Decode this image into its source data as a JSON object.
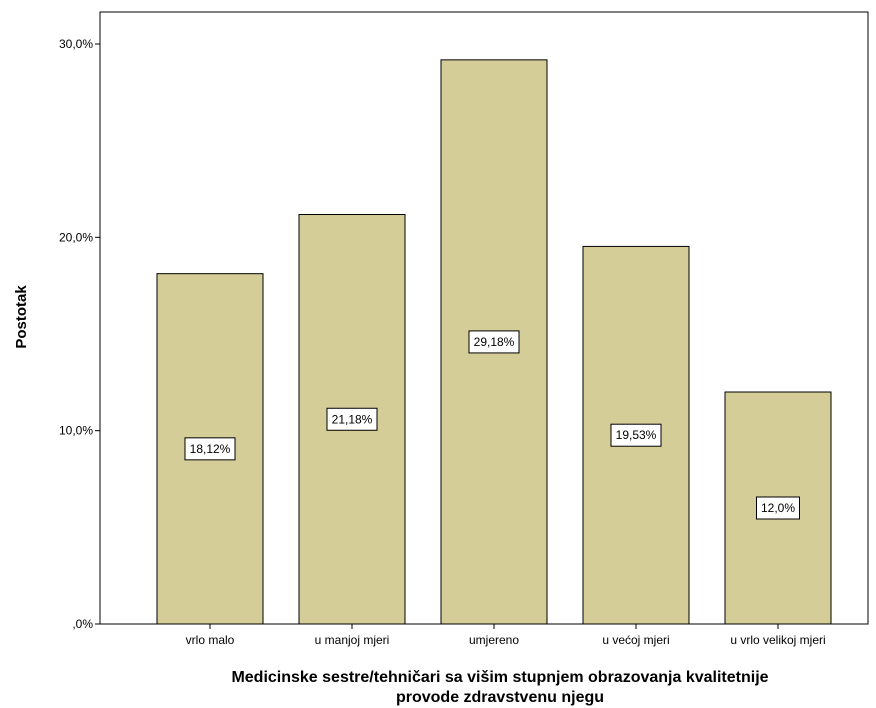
{
  "chart_data": {
    "type": "bar",
    "categories": [
      "vrlo malo",
      "u manjoj mjeri",
      "umjereno",
      "u većoj mjeri",
      "u vrlo velikoj mjeri"
    ],
    "values": [
      18.12,
      21.18,
      29.18,
      19.53,
      12.0
    ],
    "data_labels": [
      "18,12%",
      "21,18%",
      "29,18%",
      "19,53%",
      "12,0%"
    ],
    "title": "",
    "xlabel_lines": [
      "Medicinske sestre/tehničari sa višim stupnjem obrazovanja kvalitetnije",
      "provode zdravstvenu njegu"
    ],
    "ylabel": "Postotak",
    "ylim": [
      0,
      30
    ],
    "yticks": [
      0,
      10,
      20,
      30
    ],
    "ytick_labels": [
      ",0%",
      "10,0%",
      "20,0%",
      "30,0%"
    ],
    "grid": false,
    "bar_color": "#d4cd98",
    "bar_stroke": "#000000"
  }
}
